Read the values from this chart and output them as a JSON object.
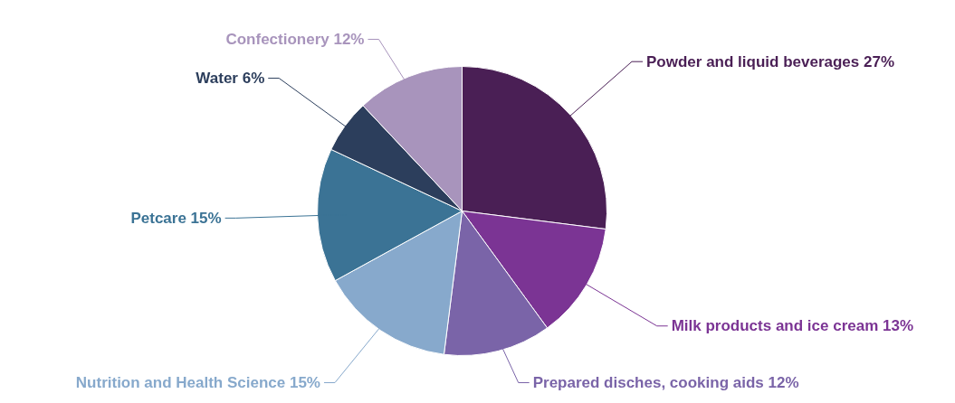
{
  "chart_data": {
    "type": "pie",
    "categories": [
      "Powder and liquid beverages",
      "Milk products and ice cream",
      "Prepared disches, cooking aids",
      "Nutrition and Health Science",
      "Petcare",
      "Water",
      "Confectionery"
    ],
    "values": [
      27,
      13,
      12,
      15,
      15,
      6,
      12
    ],
    "value_labels": [
      "27%",
      "13%",
      "12%",
      "15%",
      "15%",
      "6%",
      "12%"
    ],
    "colors": [
      "#4a1f55",
      "#7b3494",
      "#7a64a8",
      "#87a9cc",
      "#3b7395",
      "#2c3e5c",
      "#a894bc"
    ]
  }
}
